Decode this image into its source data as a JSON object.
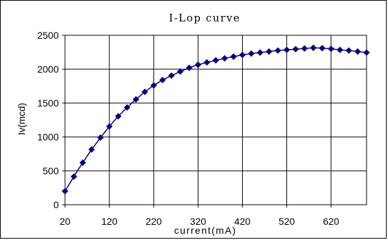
{
  "chart_data": {
    "type": "line",
    "title": "I-Lop curve",
    "xlabel": "current(mA)",
    "ylabel": "Iv(mcd)",
    "xlim": [
      20,
      700
    ],
    "ylim": [
      0,
      2500
    ],
    "xticks": [
      20,
      120,
      220,
      320,
      420,
      520,
      620
    ],
    "yticks": [
      0,
      500,
      1000,
      1500,
      2000,
      2500
    ],
    "grid": true,
    "marker": "diamond",
    "colors": {
      "line": "#000080",
      "marker": "#000080",
      "grid": "#000000"
    },
    "series": [
      {
        "x": [
          20,
          40,
          60,
          80,
          100,
          120,
          140,
          160,
          180,
          200,
          220,
          240,
          260,
          280,
          300,
          320,
          340,
          360,
          380,
          400,
          420,
          440,
          460,
          480,
          500,
          520,
          540,
          560,
          580,
          600,
          620,
          640,
          660,
          680,
          700
        ],
        "y": [
          200,
          415,
          620,
          815,
          990,
          1155,
          1305,
          1435,
          1555,
          1665,
          1760,
          1840,
          1905,
          1965,
          2020,
          2065,
          2100,
          2130,
          2160,
          2185,
          2210,
          2230,
          2245,
          2260,
          2275,
          2285,
          2295,
          2305,
          2315,
          2310,
          2300,
          2285,
          2275,
          2260,
          2245
        ]
      }
    ]
  }
}
